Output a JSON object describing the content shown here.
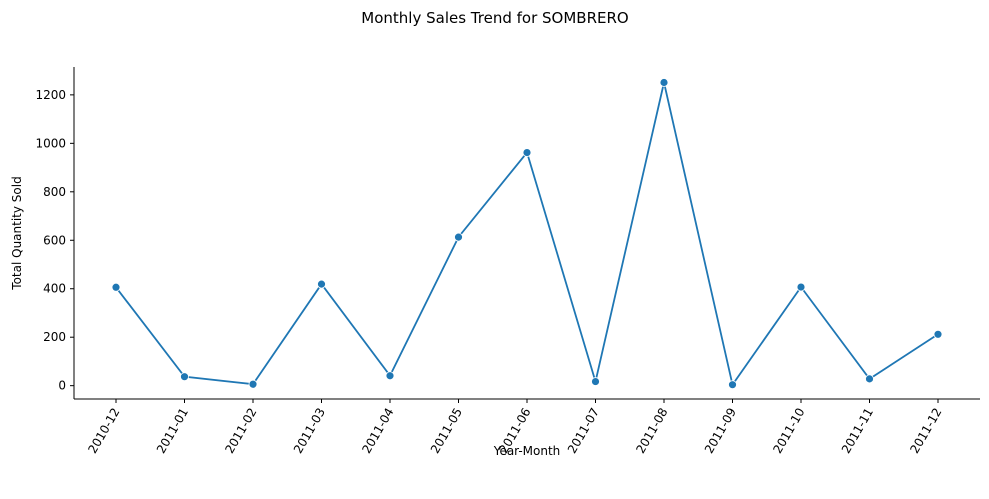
{
  "chart_data": {
    "type": "line",
    "title": "Monthly Sales Trend for SOMBRERO",
    "xlabel": "Year-Month",
    "ylabel": "Total Quantity Sold",
    "categories": [
      "2010-12",
      "2011-01",
      "2011-02",
      "2011-03",
      "2011-04",
      "2011-05",
      "2011-06",
      "2011-07",
      "2011-08",
      "2011-09",
      "2011-10",
      "2011-11",
      "2011-12"
    ],
    "series": [
      {
        "values": [
          406,
          37,
          6,
          419,
          41,
          613,
          962,
          17,
          1251,
          4,
          407,
          28,
          212
        ],
        "color": "#1f77b4"
      }
    ],
    "ylim": [
      -55,
      1315
    ],
    "yticks": [
      0,
      200,
      400,
      600,
      800,
      1000,
      1200
    ],
    "ytick_labels": [
      "0",
      "200",
      "400",
      "600",
      "800",
      "1000",
      "1200"
    ],
    "marker": "circle",
    "grid": false,
    "legend": "none"
  }
}
